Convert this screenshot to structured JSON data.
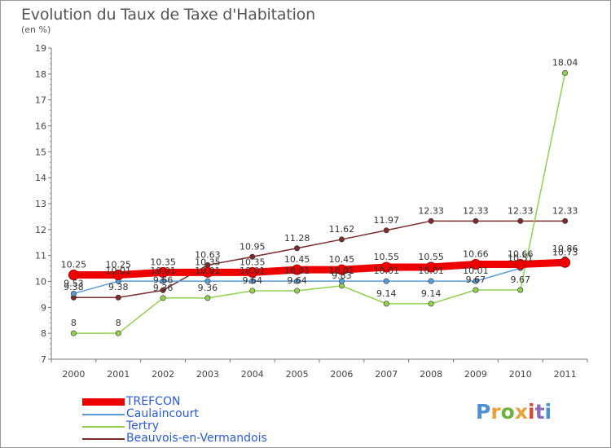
{
  "title": "Evolution du Taux de Taxe d'Habitation",
  "unit": "(en %)",
  "logo_text": "Proxiti",
  "logo_colors": [
    "#4b8fd6",
    "#e8a23a",
    "#6cb33f",
    "#e8a23a",
    "#d24b3a",
    "#8c6bbf",
    "#4b8fd6"
  ],
  "chart_data": {
    "type": "line",
    "x": [
      "2000",
      "2001",
      "2002",
      "2003",
      "2004",
      "2005",
      "2006",
      "2007",
      "2008",
      "2009",
      "2010",
      "2011"
    ],
    "ylim": [
      7,
      19
    ],
    "yticks": [
      "7",
      "8",
      "9",
      "10",
      "11",
      "12",
      "13",
      "14",
      "15",
      "16",
      "17",
      "18",
      "19"
    ],
    "grid": false,
    "legend_position": "bottom-left",
    "series": [
      {
        "name": "TREFCON",
        "color": "#ee0000",
        "values": [
          10.25,
          10.25,
          10.35,
          10.35,
          10.35,
          10.45,
          10.45,
          10.55,
          10.55,
          10.66,
          10.66,
          10.73
        ],
        "labels": [
          "10.25",
          "10.25",
          "10.35",
          "10.35",
          "10.35",
          "10.45",
          "10.45",
          "10.55",
          "10.55",
          "10.66",
          "10.66",
          "10.73"
        ]
      },
      {
        "name": "Caulaincourt",
        "color": "#5b9bd5",
        "values": [
          9.53,
          10.01,
          10.01,
          10.01,
          10.01,
          10.01,
          10.01,
          10.01,
          10.01,
          10.01,
          10.51,
          10.86
        ],
        "labels": [
          "9.53",
          "10.01",
          "10.01",
          "10.01",
          "10.01",
          "10.01",
          "10.01",
          "10.01",
          "10.01",
          "10.01",
          "10.51",
          "10.86"
        ]
      },
      {
        "name": "Tertry",
        "color": "#92d050",
        "values": [
          8.0,
          8.0,
          9.36,
          9.36,
          9.64,
          9.64,
          9.83,
          9.14,
          9.14,
          9.67,
          9.67,
          18.04
        ],
        "labels": [
          "8",
          "8",
          "9.36",
          "9.36",
          "9.64",
          "9.64",
          "9.83",
          "9.14",
          "9.14",
          "9.67",
          "9.67",
          "18.04"
        ]
      },
      {
        "name": "Beauvois-en-Vermandois",
        "color": "#7b2c2c",
        "values": [
          9.38,
          9.38,
          9.66,
          10.63,
          10.95,
          11.28,
          11.62,
          11.97,
          12.33,
          12.33,
          12.33,
          12.33
        ],
        "labels": [
          "9.38",
          "9.38",
          "9.66",
          "10.63",
          "10.95",
          "11.28",
          "11.62",
          "11.97",
          "12.33",
          "12.33",
          "12.33",
          "12.33"
        ]
      }
    ]
  }
}
